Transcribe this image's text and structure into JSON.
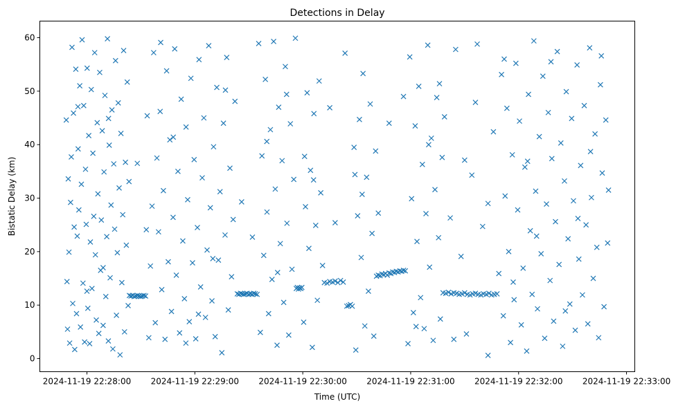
{
  "chart_data": {
    "type": "scatter",
    "title": "Detections in Delay",
    "xlabel": "Time (UTC)",
    "ylabel": "Bistatic Delay (km)",
    "x_unit": "seconds after 2024-11-19 22:27:00",
    "xlim": [
      33.8,
      364.6
    ],
    "ylim": [
      -2.45,
      63.1
    ],
    "grid": false,
    "marker": "x",
    "color": "#1f77b4",
    "xticks": [
      {
        "value": 60,
        "label": "2024-11-19 22:28:00"
      },
      {
        "value": 120,
        "label": "2024-11-19 22:29:00"
      },
      {
        "value": 180,
        "label": "2024-11-19 22:30:00"
      },
      {
        "value": 240,
        "label": "2024-11-19 22:31:00"
      },
      {
        "value": 300,
        "label": "2024-11-19 22:32:00"
      },
      {
        "value": 360,
        "label": "2024-11-19 22:33:00"
      }
    ],
    "yticks": [
      {
        "value": 0,
        "label": "0"
      },
      {
        "value": 10,
        "label": "10"
      },
      {
        "value": 20,
        "label": "20"
      },
      {
        "value": 30,
        "label": "30"
      },
      {
        "value": 40,
        "label": "40"
      },
      {
        "value": 50,
        "label": "50"
      },
      {
        "value": 60,
        "label": "60"
      }
    ],
    "points": [
      [
        48.5,
        44.6
      ],
      [
        48.9,
        14.4
      ],
      [
        49.2,
        5.5
      ],
      [
        49.6,
        33.6
      ],
      [
        50,
        19.9
      ],
      [
        50.4,
        2.9
      ],
      [
        50.9,
        29.2
      ],
      [
        51.3,
        37.7
      ],
      [
        51.7,
        58.2
      ],
      [
        52.1,
        10.3
      ],
      [
        52.5,
        45.9
      ],
      [
        52.9,
        24.6
      ],
      [
        53.2,
        1.7
      ],
      [
        53.8,
        54.1
      ],
      [
        54.2,
        8.4
      ],
      [
        54.6,
        22.9
      ],
      [
        55.1,
        39.2
      ],
      [
        55.5,
        27.8
      ],
      [
        56,
        51.0
      ],
      [
        56.4,
        5.9
      ],
      [
        56.9,
        32.6
      ],
      [
        57.3,
        59.6
      ],
      [
        57.8,
        14.1
      ],
      [
        58.2,
        47.3
      ],
      [
        58.7,
        3.1
      ],
      [
        59.2,
        35.4
      ],
      [
        59.6,
        25.1
      ],
      [
        60.1,
        54.3
      ],
      [
        60.5,
        9.4
      ],
      [
        61,
        41.7
      ],
      [
        61.5,
        2.8
      ],
      [
        61.9,
        21.8
      ],
      [
        62.4,
        50.3
      ],
      [
        62.8,
        13.1
      ],
      [
        63.3,
        38.4
      ],
      [
        63.8,
        26.6
      ],
      [
        64.3,
        57.2
      ],
      [
        64.7,
        19.4
      ],
      [
        65.2,
        7.2
      ],
      [
        65.7,
        44.1
      ],
      [
        66.1,
        30.8
      ],
      [
        66.6,
        4.7
      ],
      [
        67.1,
        53.5
      ],
      [
        67.6,
        16.5
      ],
      [
        68,
        25.9
      ],
      [
        68.5,
        42.6
      ],
      [
        69,
        6.2
      ],
      [
        69.5,
        34.9
      ],
      [
        70,
        49.2
      ],
      [
        70.5,
        11.6
      ],
      [
        71,
        22.8
      ],
      [
        71.4,
        59.8
      ],
      [
        71.9,
        3.3
      ],
      [
        72.4,
        39.9
      ],
      [
        72.9,
        15.1
      ],
      [
        73.4,
        28.7
      ],
      [
        73.9,
        46.5
      ],
      [
        74.4,
        1.8
      ],
      [
        74.9,
        36.4
      ],
      [
        75.4,
        24.2
      ],
      [
        75.9,
        55.7
      ],
      [
        76.4,
        8.1
      ],
      [
        76.9,
        19.8
      ],
      [
        77.4,
        47.8
      ],
      [
        77.9,
        31.9
      ],
      [
        78.4,
        0.7
      ],
      [
        78.9,
        42.1
      ],
      [
        79.4,
        14.2
      ],
      [
        79.9,
        26.9
      ],
      [
        80.4,
        57.6
      ],
      [
        80.9,
        5.0
      ],
      [
        81.4,
        36.7
      ],
      [
        81.9,
        21.2
      ],
      [
        82.4,
        51.7
      ],
      [
        82.9,
        9.9
      ],
      [
        83.4,
        33.1
      ],
      [
        83.6,
        11.8
      ],
      [
        84.5,
        11.7
      ],
      [
        85.4,
        11.8
      ],
      [
        86.3,
        11.6
      ],
      [
        87.2,
        11.7
      ],
      [
        88.1,
        11.8
      ],
      [
        89,
        11.7
      ],
      [
        89.9,
        11.6
      ],
      [
        90.8,
        11.7
      ],
      [
        91.7,
        11.8
      ],
      [
        92.6,
        11.7
      ],
      [
        93.5,
        45.4
      ],
      [
        94.4,
        3.9
      ],
      [
        95.3,
        17.3
      ],
      [
        96.2,
        28.5
      ],
      [
        97.1,
        57.2
      ],
      [
        98,
        6.7
      ],
      [
        98.9,
        37.5
      ],
      [
        99.8,
        23.7
      ],
      [
        100.7,
        46.2
      ],
      [
        101.6,
        12.9
      ],
      [
        102.5,
        31.4
      ],
      [
        103.4,
        3.6
      ],
      [
        104.3,
        53.8
      ],
      [
        105.2,
        18.1
      ],
      [
        106.1,
        40.9
      ],
      [
        107,
        8.8
      ],
      [
        107.9,
        26.4
      ],
      [
        108.8,
        57.9
      ],
      [
        109.7,
        15.6
      ],
      [
        110.6,
        35.0
      ],
      [
        111.5,
        4.8
      ],
      [
        112.4,
        48.5
      ],
      [
        113.3,
        22.0
      ],
      [
        114.2,
        11.2
      ],
      [
        115.1,
        43.3
      ],
      [
        116,
        29.7
      ],
      [
        116.9,
        6.9
      ],
      [
        117.8,
        52.4
      ],
      [
        118.7,
        17.9
      ],
      [
        119.6,
        37.2
      ],
      [
        120.5,
        3.7
      ],
      [
        121.4,
        24.5
      ],
      [
        122.3,
        55.9
      ],
      [
        123.2,
        13.4
      ],
      [
        124.1,
        33.8
      ],
      [
        125,
        45.0
      ],
      [
        125.9,
        7.7
      ],
      [
        126.8,
        20.3
      ],
      [
        127.7,
        58.5
      ],
      [
        128.6,
        28.2
      ],
      [
        129.5,
        10.8
      ],
      [
        130.4,
        39.6
      ],
      [
        131.3,
        4.1
      ],
      [
        132.2,
        50.7
      ],
      [
        133.1,
        18.4
      ],
      [
        134,
        31.2
      ],
      [
        135,
        1.1
      ],
      [
        135.9,
        44.0
      ],
      [
        136.8,
        23.1
      ],
      [
        137.7,
        56.3
      ],
      [
        138.6,
        9.1
      ],
      [
        139.5,
        35.6
      ],
      [
        140.4,
        15.3
      ],
      [
        141.3,
        26.0
      ],
      [
        142.3,
        48.1
      ],
      [
        143.6,
        12.1
      ],
      [
        144.5,
        12.0
      ],
      [
        145.4,
        12.2
      ],
      [
        146.3,
        12.1
      ],
      [
        147.2,
        12.0
      ],
      [
        148.1,
        12.1
      ],
      [
        149,
        12.2
      ],
      [
        150,
        12.0
      ],
      [
        150.9,
        12.1
      ],
      [
        151.8,
        12.0
      ],
      [
        152.7,
        12.2
      ],
      [
        153.6,
        12.1
      ],
      [
        154.6,
        12.0
      ],
      [
        155.5,
        58.9
      ],
      [
        156.4,
        4.9
      ],
      [
        157.3,
        37.9
      ],
      [
        158.3,
        19.3
      ],
      [
        159.2,
        52.2
      ],
      [
        160.1,
        27.4
      ],
      [
        161,
        8.4
      ],
      [
        162,
        42.8
      ],
      [
        162.9,
        14.8
      ],
      [
        163.8,
        59.3
      ],
      [
        164.7,
        31.7
      ],
      [
        165.7,
        2.5
      ],
      [
        166.6,
        47.0
      ],
      [
        167.5,
        21.5
      ],
      [
        168.5,
        37.0
      ],
      [
        169.4,
        10.5
      ],
      [
        170.3,
        54.6
      ],
      [
        171.2,
        25.3
      ],
      [
        172.2,
        4.4
      ],
      [
        173.1,
        43.9
      ],
      [
        174,
        16.7
      ],
      [
        175,
        33.5
      ],
      [
        175.9,
        59.9
      ],
      [
        176.4,
        13.1
      ],
      [
        177,
        13.3
      ],
      [
        177.6,
        13.0
      ],
      [
        178.2,
        13.2
      ],
      [
        178.9,
        13.1
      ],
      [
        179.5,
        13.3
      ],
      [
        180.5,
        6.8
      ],
      [
        181.5,
        28.4
      ],
      [
        182.4,
        49.7
      ],
      [
        183.4,
        20.6
      ],
      [
        184.3,
        35.2
      ],
      [
        185.3,
        2.1
      ],
      [
        186.2,
        45.8
      ],
      [
        187.2,
        24.9
      ],
      [
        188.1,
        10.9
      ],
      [
        189.1,
        51.9
      ],
      [
        190,
        31.0
      ],
      [
        191,
        17.4
      ],
      [
        192,
        14.2
      ],
      [
        193.5,
        14.1
      ],
      [
        195,
        14.4
      ],
      [
        196.5,
        14.3
      ],
      [
        198,
        14.5
      ],
      [
        199.5,
        14.2
      ],
      [
        201,
        14.6
      ],
      [
        202.5,
        14.3
      ],
      [
        203.5,
        57.1
      ],
      [
        204.5,
        9.8
      ],
      [
        205.5,
        9.9
      ],
      [
        206.5,
        10.1
      ],
      [
        207.5,
        9.8
      ],
      [
        208.5,
        39.5
      ],
      [
        209.5,
        1.6
      ],
      [
        210.5,
        26.7
      ],
      [
        211.5,
        44.7
      ],
      [
        212.5,
        18.9
      ],
      [
        213.5,
        53.3
      ],
      [
        214.5,
        6.1
      ],
      [
        215.5,
        33.9
      ],
      [
        216.5,
        12.6
      ],
      [
        217.5,
        47.6
      ],
      [
        218.5,
        23.4
      ],
      [
        219.5,
        4.2
      ],
      [
        220.5,
        38.8
      ],
      [
        221,
        15.4
      ],
      [
        222,
        15.6
      ],
      [
        223,
        15.5
      ],
      [
        224,
        15.8
      ],
      [
        225,
        15.7
      ],
      [
        226,
        15.9
      ],
      [
        227,
        15.6
      ],
      [
        228,
        16.0
      ],
      [
        229,
        15.9
      ],
      [
        230,
        16.2
      ],
      [
        231,
        16.1
      ],
      [
        232,
        16.3
      ],
      [
        233,
        16.2
      ],
      [
        234,
        16.4
      ],
      [
        235,
        16.3
      ],
      [
        236,
        16.5
      ],
      [
        237,
        16.4
      ],
      [
        238.5,
        2.8
      ],
      [
        239.5,
        56.4
      ],
      [
        240.5,
        29.9
      ],
      [
        241.5,
        8.6
      ],
      [
        242.5,
        43.5
      ],
      [
        243.5,
        21.9
      ],
      [
        244.5,
        50.9
      ],
      [
        245.5,
        11.4
      ],
      [
        246.5,
        36.3
      ],
      [
        247.5,
        5.6
      ],
      [
        248.5,
        27.1
      ],
      [
        249.5,
        58.6
      ],
      [
        250.5,
        17.1
      ],
      [
        251.5,
        41.2
      ],
      [
        252.5,
        3.4
      ],
      [
        253.5,
        31.6
      ],
      [
        254.5,
        48.8
      ],
      [
        255.5,
        22.6
      ],
      [
        256.5,
        7.4
      ],
      [
        257.5,
        37.6
      ],
      [
        258,
        12.3
      ],
      [
        259.5,
        12.2
      ],
      [
        261,
        12.4
      ],
      [
        262.5,
        12.1
      ],
      [
        264,
        12.3
      ],
      [
        265.5,
        12.2
      ],
      [
        267,
        12.0
      ],
      [
        268.5,
        12.1
      ],
      [
        270,
        12.3
      ],
      [
        271.5,
        12.0
      ],
      [
        273,
        11.9
      ],
      [
        274.5,
        12.1
      ],
      [
        276,
        12.2
      ],
      [
        277.5,
        12.0
      ],
      [
        279,
        11.9
      ],
      [
        280.5,
        12.1
      ],
      [
        282,
        12.0
      ],
      [
        283.5,
        12.2
      ],
      [
        285,
        11.9
      ],
      [
        286.5,
        12.0
      ],
      [
        288,
        12.1
      ],
      [
        258.8,
        45.2
      ],
      [
        262,
        26.3
      ],
      [
        265,
        57.8
      ],
      [
        268,
        19.1
      ],
      [
        271,
        4.6
      ],
      [
        274,
        34.3
      ],
      [
        277,
        58.8
      ],
      [
        280,
        24.7
      ],
      [
        283,
        0.6
      ],
      [
        286,
        42.4
      ],
      [
        289,
        15.9
      ],
      [
        290.5,
        53.1
      ],
      [
        291.5,
        8.0
      ],
      [
        292.5,
        30.4
      ],
      [
        293.5,
        46.8
      ],
      [
        294.5,
        20.0
      ],
      [
        295.5,
        3.0
      ],
      [
        296.5,
        38.1
      ],
      [
        297.5,
        11.0
      ],
      [
        298.5,
        55.2
      ],
      [
        299.5,
        27.8
      ],
      [
        300.5,
        44.4
      ],
      [
        301.5,
        6.3
      ],
      [
        302.5,
        16.9
      ],
      [
        303.5,
        35.8
      ],
      [
        304.5,
        1.4
      ],
      [
        305.5,
        49.4
      ],
      [
        306.5,
        23.9
      ],
      [
        307.5,
        12.0
      ],
      [
        308.5,
        59.4
      ],
      [
        309.5,
        31.3
      ],
      [
        310.5,
        9.3
      ],
      [
        311.5,
        41.5
      ],
      [
        312.5,
        19.6
      ],
      [
        313.5,
        52.8
      ],
      [
        314.5,
        3.8
      ],
      [
        315.5,
        28.9
      ],
      [
        316.5,
        46.0
      ],
      [
        317.5,
        14.6
      ],
      [
        318.5,
        37.4
      ],
      [
        319.5,
        7.0
      ],
      [
        320.5,
        25.6
      ],
      [
        321.5,
        57.4
      ],
      [
        322.5,
        17.6
      ],
      [
        323.5,
        40.3
      ],
      [
        324.5,
        2.3
      ],
      [
        325.5,
        33.2
      ],
      [
        326.5,
        49.9
      ],
      [
        327.5,
        22.4
      ],
      [
        328.5,
        10.2
      ],
      [
        329.5,
        44.9
      ],
      [
        330.5,
        29.5
      ],
      [
        331.5,
        5.3
      ],
      [
        332.5,
        54.9
      ],
      [
        333.5,
        18.6
      ],
      [
        334.5,
        36.1
      ],
      [
        335.5,
        11.9
      ],
      [
        336.5,
        47.3
      ],
      [
        337.5,
        25.0
      ],
      [
        338.5,
        6.5
      ],
      [
        339.5,
        58.1
      ],
      [
        340.5,
        30.1
      ],
      [
        341.5,
        15.0
      ],
      [
        342.5,
        42.0
      ],
      [
        343.5,
        20.8
      ],
      [
        344.5,
        3.9
      ],
      [
        345.5,
        51.2
      ],
      [
        346.5,
        34.7
      ],
      [
        347.5,
        9.7
      ],
      [
        348.5,
        44.6
      ],
      [
        349.5,
        21.6
      ],
      [
        350,
        31.5
      ],
      [
        60,
        12.6
      ],
      [
        72,
        44.9
      ],
      [
        88,
        36.5
      ],
      [
        101,
        59.1
      ],
      [
        115,
        2.9
      ],
      [
        130,
        18.7
      ],
      [
        146,
        29.3
      ],
      [
        160,
        40.6
      ],
      [
        171,
        49.4
      ],
      [
        186,
        33.4
      ],
      [
        198,
        25.4
      ],
      [
        213,
        30.7
      ],
      [
        228,
        44.0
      ],
      [
        243,
        6.0
      ],
      [
        256,
        51.4
      ],
      [
        270,
        37.1
      ],
      [
        283,
        29.0
      ],
      [
        297,
        14.3
      ],
      [
        310,
        22.9
      ],
      [
        326,
        8.9
      ],
      [
        340,
        38.7
      ],
      [
        55,
        47.1
      ],
      [
        69,
        17.0
      ],
      [
        93,
        24.1
      ],
      [
        108,
        41.4
      ],
      [
        122,
        8.3
      ],
      [
        137,
        50.2
      ],
      [
        152,
        22.7
      ],
      [
        166,
        16.1
      ],
      [
        181,
        37.8
      ],
      [
        195,
        46.9
      ],
      [
        209,
        34.4
      ],
      [
        222,
        27.2
      ],
      [
        236,
        49.0
      ],
      [
        250,
        40.0
      ],
      [
        264,
        3.6
      ],
      [
        276,
        47.9
      ],
      [
        292,
        56.0
      ],
      [
        305,
        36.9
      ],
      [
        318,
        55.5
      ],
      [
        333,
        26.2
      ],
      [
        346,
        56.6
      ]
    ]
  }
}
